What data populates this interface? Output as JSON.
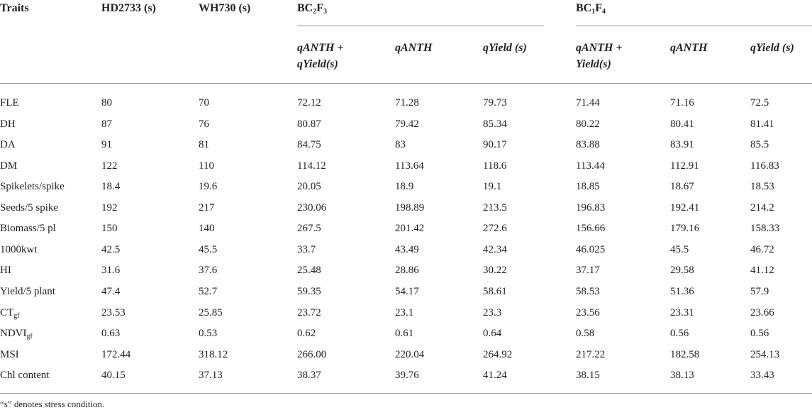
{
  "table": {
    "columns": [
      "Traits",
      "HD2733 (s)",
      "WH730 (s)"
    ],
    "groups": [
      {
        "label": [
          "BC",
          "2",
          "F",
          "3"
        ],
        "columns": [
          "qANTH + qYield(s)",
          "qANTH",
          "qYield (s)"
        ]
      },
      {
        "label": [
          "BC",
          "1",
          "F",
          "4"
        ],
        "columns": [
          "qANTH + Yield(s)",
          "qANTH",
          "qYield (s)"
        ]
      }
    ],
    "rows": [
      {
        "trait": "FLE",
        "values": [
          "80",
          "70",
          "72.12",
          "71.28",
          "79.73",
          "71.44",
          "71.16",
          "72.5"
        ]
      },
      {
        "trait": "DH",
        "values": [
          "87",
          "76",
          "80.87",
          "79.42",
          "85.34",
          "80.22",
          "80.41",
          "81.41"
        ]
      },
      {
        "trait": "DA",
        "values": [
          "91",
          "81",
          "84.75",
          "83",
          "90.17",
          "83.88",
          "83.91",
          "85.5"
        ]
      },
      {
        "trait": "DM",
        "values": [
          "122",
          "110",
          "114.12",
          "113.64",
          "118.6",
          "113.44",
          "112.91",
          "116.83"
        ]
      },
      {
        "trait": "Spikelets/spike",
        "values": [
          "18.4",
          "19.6",
          "20.05",
          "18.9",
          "19.1",
          "18.85",
          "18.67",
          "18.53"
        ]
      },
      {
        "trait": "Seeds/5 spike",
        "values": [
          "192",
          "217",
          "230.06",
          "198.89",
          "213.5",
          "196.83",
          "192.41",
          "214.2"
        ]
      },
      {
        "trait": "Biomass/5 pl",
        "values": [
          "150",
          "140",
          "267.5",
          "201.42",
          "272.6",
          "156.66",
          "179.16",
          "158.33"
        ]
      },
      {
        "trait": "1000kwt",
        "values": [
          "42.5",
          "45.5",
          "33.7",
          "43.49",
          "42.34",
          "46.025",
          "45.5",
          "46.72"
        ]
      },
      {
        "trait": "HI",
        "values": [
          "31.6",
          "37.6",
          "25.48",
          "28.86",
          "30.22",
          "37.17",
          "29.58",
          "41.12"
        ]
      },
      {
        "trait": "Yield/5 plant",
        "values": [
          "47.4",
          "52.7",
          "59.35",
          "54.17",
          "58.61",
          "58.53",
          "51.36",
          "57.9"
        ]
      },
      {
        "trait": [
          "CT",
          "gf"
        ],
        "values": [
          "23.53",
          "25.85",
          "23.72",
          "23.1",
          "23.3",
          "23.56",
          "23.31",
          "23.66"
        ]
      },
      {
        "trait": [
          "NDVI",
          "gf"
        ],
        "values": [
          "0.63",
          "0.53",
          "0.62",
          "0.61",
          "0.64",
          "0.58",
          "0.56",
          "0.56"
        ]
      },
      {
        "trait": "MSI",
        "values": [
          "172.44",
          "318.12",
          "266.00",
          "220.04",
          "264.92",
          "217.22",
          "182.58",
          "254.13"
        ]
      },
      {
        "trait": "Chl content",
        "values": [
          "40.15",
          "37.13",
          "38.37",
          "39.76",
          "41.24",
          "38.15",
          "38.13",
          "33.43"
        ]
      }
    ]
  },
  "footnote": "“s” denotes stress condition."
}
